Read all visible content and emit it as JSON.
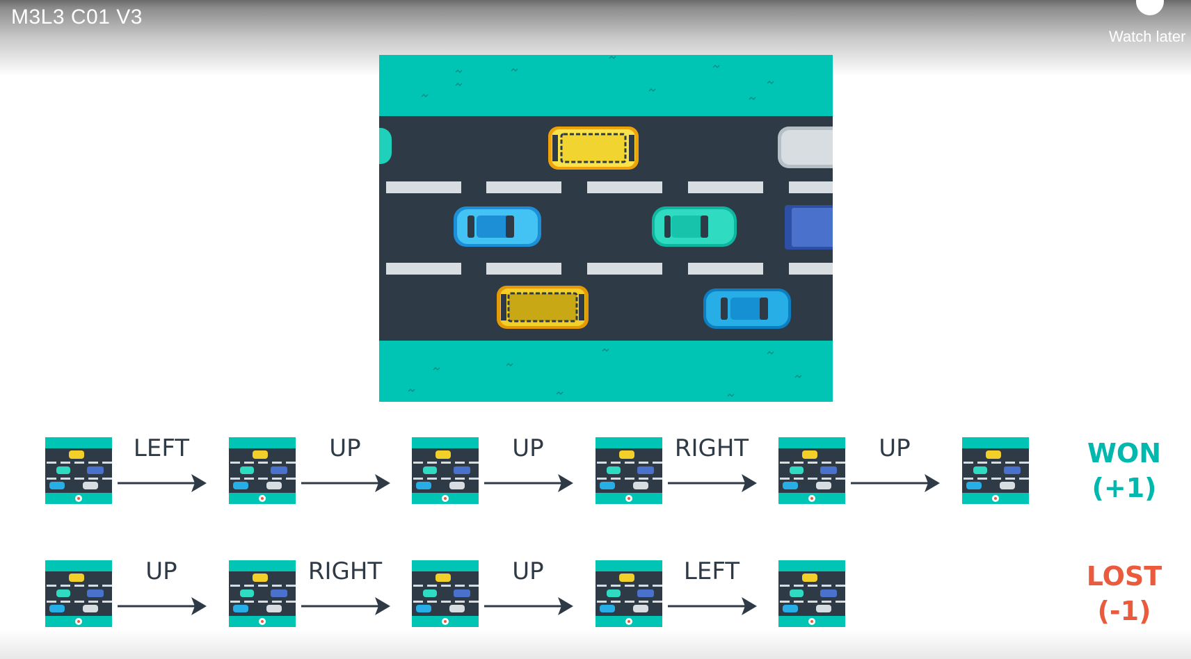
{
  "player": {
    "title": "M3L3 C01 V3",
    "watch_later_label": "Watch later",
    "watch_later_icon": "clock-icon"
  },
  "colors": {
    "grass": "#00c5b5",
    "road": "#2e3a46",
    "lane_marking": "#d8dde2",
    "text": "#2e3a46",
    "won": "#00b8ad",
    "lost": "#ea5a3c"
  },
  "episodes": [
    {
      "actions": [
        "LEFT",
        "UP",
        "UP",
        "RIGHT",
        "UP"
      ],
      "outcome_label": "WON",
      "outcome_reward": "(+1)"
    },
    {
      "actions": [
        "UP",
        "RIGHT",
        "UP",
        "LEFT"
      ],
      "outcome_label": "LOST",
      "outcome_reward": "(-1)"
    }
  ]
}
